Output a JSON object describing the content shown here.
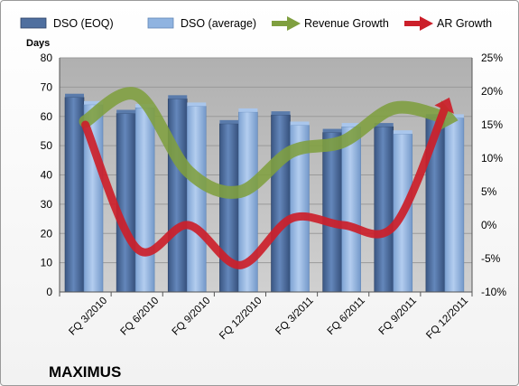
{
  "chart_data": {
    "type": "bar",
    "title": "MAXIMUS",
    "categories": [
      "FQ 3/2010",
      "FQ 6/2010",
      "FQ 9/2010",
      "FQ 12/2010",
      "FQ 3/2011",
      "FQ 6/2011",
      "FQ 9/2011",
      "FQ 12/2011"
    ],
    "ylabel": "Days",
    "ylim": [
      0,
      80
    ],
    "yticks": [
      "0",
      "10",
      "20",
      "30",
      "40",
      "50",
      "60",
      "70",
      "80"
    ],
    "y2lim": [
      -10,
      25
    ],
    "y2ticks": [
      "-10%",
      "-5%",
      "0%",
      "5%",
      "10%",
      "15%",
      "20%",
      "25%"
    ],
    "legend_position": "top",
    "series": [
      {
        "name": "DSO (EOQ)",
        "kind": "bar",
        "axis": "left",
        "color": "#4f6f9f",
        "values": [
          66.5,
          61,
          66,
          57.5,
          60.5,
          54.5,
          56.5,
          59.5
        ]
      },
      {
        "name": "DSO (average)",
        "kind": "bar",
        "axis": "left",
        "color": "#8fb3e0",
        "values": [
          64,
          63,
          63.5,
          61.5,
          57,
          56.5,
          54,
          59.5
        ]
      },
      {
        "name": "Revenue Growth",
        "kind": "line",
        "axis": "right",
        "color": "#7f9f3f",
        "values": [
          15.5,
          19.5,
          8,
          5,
          11,
          12.5,
          17.5,
          16
        ]
      },
      {
        "name": "AR Growth",
        "kind": "line",
        "axis": "right",
        "color": "#cc1f2a",
        "values": [
          15,
          -3.5,
          0,
          -6,
          1,
          0,
          0,
          18
        ]
      }
    ],
    "colors": {
      "plot_background": "#bdbdbd",
      "grid": "#9a9a9a"
    }
  }
}
